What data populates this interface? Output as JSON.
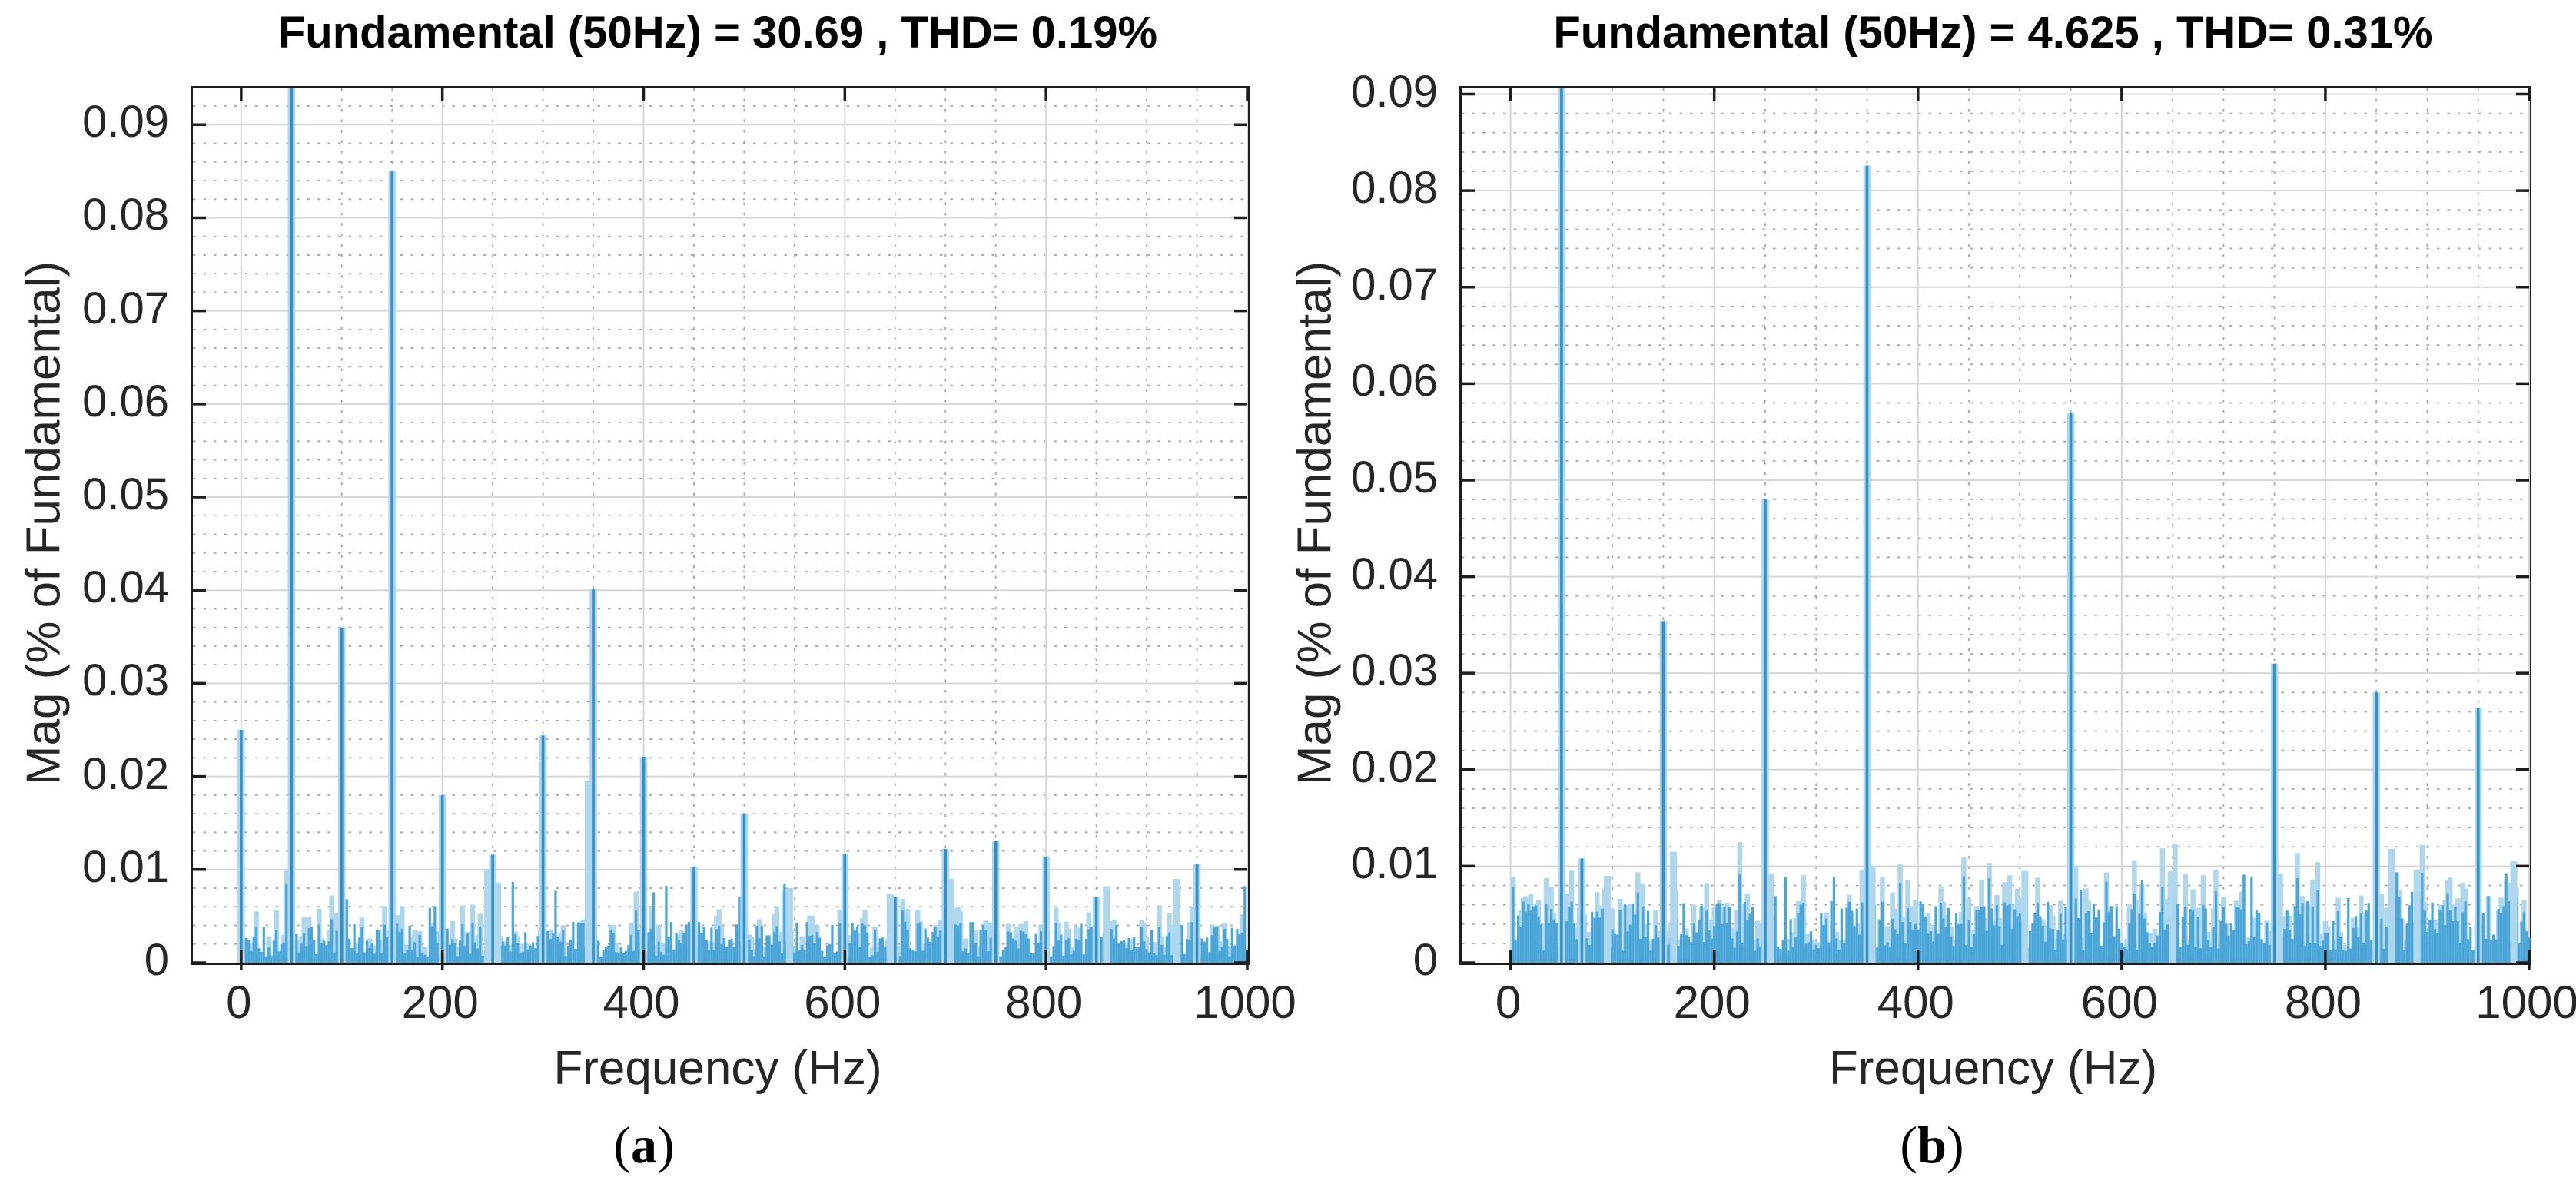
{
  "page": {
    "background": "#ffffff"
  },
  "colors": {
    "peak_bar": "#2f90ca",
    "noise_bar": "#4aa5d8",
    "light_bar": "#aed6ec",
    "grid_major": "#d6d6d6",
    "grid_minor": "#a6a6a6",
    "axis_line": "#1d1d1d",
    "tick_text": "#262626",
    "title_text": "#000000"
  },
  "chart_data": [
    {
      "type": "bar",
      "title": "Fundamental (50Hz) = 30.69 , THD= 0.19%",
      "xlabel": "Frequency (Hz)",
      "ylabel": "Mag (% of Fundamental)",
      "caption": {
        "open": "(",
        "letter": "a",
        "close": ")"
      },
      "xlim": [
        -48,
        1000
      ],
      "ylim": [
        0,
        0.0939
      ],
      "xticks": [
        0,
        200,
        400,
        600,
        800,
        1000
      ],
      "xtick_labels": [
        "0",
        "200",
        "400",
        "600",
        "800",
        "1000"
      ],
      "yticks": [
        0,
        0.01,
        0.02,
        0.03,
        0.04,
        0.05,
        0.06,
        0.07,
        0.08,
        0.09
      ],
      "ytick_labels": [
        "0",
        "0.01",
        "0.02",
        "0.03",
        "0.04",
        "0.05",
        "0.06",
        "0.07",
        "0.08",
        "0.09"
      ],
      "grid": true,
      "minor_x_step": 50,
      "minor_y_step": 0.002,
      "peaks": [
        [
          0,
          0.025
        ],
        [
          50,
          0.0939
        ],
        [
          100,
          0.036
        ],
        [
          150,
          0.085
        ],
        [
          200,
          0.018
        ],
        [
          250,
          0.0116
        ],
        [
          300,
          0.0244
        ],
        [
          350,
          0.0401
        ],
        [
          400,
          0.0221
        ],
        [
          450,
          0.0103
        ],
        [
          500,
          0.016
        ],
        [
          600,
          0.0117
        ],
        [
          650,
          0.0071
        ],
        [
          700,
          0.0122
        ],
        [
          750,
          0.0131
        ],
        [
          800,
          0.0114
        ],
        [
          850,
          0.0071
        ],
        [
          950,
          0.0106
        ]
      ],
      "light_peaks": [
        [
          245,
          0.01
        ],
        [
          255,
          0.0086
        ],
        [
          345,
          0.0195
        ],
        [
          545,
          0.008
        ],
        [
          645,
          0.0074
        ],
        [
          705,
          0.009
        ],
        [
          860,
          0.0082
        ],
        [
          930,
          0.009
        ]
      ],
      "noise": {
        "seed": 11,
        "step_hz": 2.5,
        "base": 0.0006,
        "range": 0.0038,
        "spike_prob": 0.05,
        "spike_base": 0.004,
        "spike_range": 0.005,
        "light_prob": 0.45
      }
    },
    {
      "type": "bar",
      "title": "Fundamental (50Hz) = 4.625 , THD= 0.31%",
      "xlabel": "Frequency (Hz)",
      "ylabel": "Mag (% of Fundamental)",
      "caption": {
        "open": "(",
        "letter": "b",
        "close": ")"
      },
      "xlim": [
        -48,
        1000
      ],
      "ylim": [
        0,
        0.0906
      ],
      "xticks": [
        0,
        200,
        400,
        600,
        800,
        1000
      ],
      "xtick_labels": [
        "0",
        "200",
        "400",
        "600",
        "800",
        "1000"
      ],
      "yticks": [
        0,
        0.01,
        0.02,
        0.03,
        0.04,
        0.05,
        0.06,
        0.07,
        0.08,
        0.09
      ],
      "ytick_labels": [
        "0",
        "0.01",
        "0.02",
        "0.03",
        "0.04",
        "0.05",
        "0.06",
        "0.07",
        "0.08",
        "0.09"
      ],
      "grid": true,
      "minor_x_step": 50,
      "minor_y_step": 0.002,
      "peaks": [
        [
          50,
          0.0906
        ],
        [
          70,
          0.0108
        ],
        [
          150,
          0.0354
        ],
        [
          250,
          0.048
        ],
        [
          350,
          0.0826
        ],
        [
          550,
          0.057
        ],
        [
          750,
          0.031
        ],
        [
          850,
          0.028
        ],
        [
          950,
          0.0264
        ]
      ],
      "light_peaks": [
        [
          95,
          0.009
        ],
        [
          160,
          0.0115
        ],
        [
          255,
          0.0092
        ],
        [
          355,
          0.01
        ],
        [
          505,
          0.0095
        ],
        [
          650,
          0.0095
        ],
        [
          755,
          0.0092
        ],
        [
          865,
          0.0118
        ],
        [
          890,
          0.0096
        ],
        [
          985,
          0.0105
        ]
      ],
      "noise": {
        "seed": 23,
        "step_hz": 2.5,
        "base": 0.0012,
        "range": 0.0052,
        "spike_prob": 0.1,
        "spike_base": 0.0052,
        "spike_range": 0.0042,
        "light_prob": 0.55
      }
    }
  ]
}
